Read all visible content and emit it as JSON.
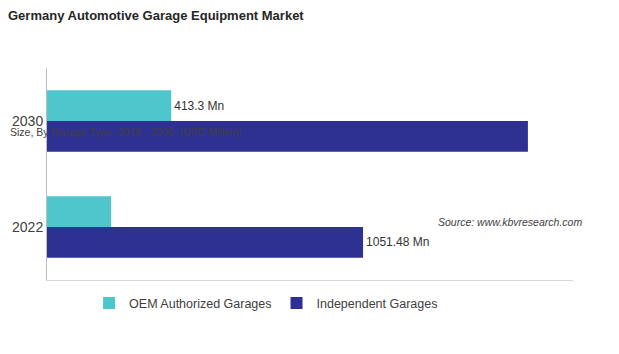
{
  "chart_data": {
    "type": "bar",
    "orientation": "horizontal",
    "title": "Germany Automotive Garage Equipment Market",
    "subtitle": "Size, By Garage Type, 2019 - 2030, (USD Million)",
    "annotations": [
      "Source: www.kbvresearch.com"
    ],
    "categories": [
      "2022",
      "2030"
    ],
    "series": [
      {
        "name": "OEM Authorized Garages",
        "color": "#4fc6cc",
        "values": [
          213,
          413.3
        ],
        "value_labels": [
          null,
          "413.3 Mn"
        ]
      },
      {
        "name": "Independent Garages",
        "color": "#2e3192",
        "values": [
          1051.48,
          1600
        ],
        "value_labels": [
          "1051.48 Mn",
          null
        ]
      }
    ],
    "xlim": [
      0,
      1750
    ],
    "tick_labels": "y",
    "grid": false,
    "legend": "bottom",
    "data_labels": true
  }
}
